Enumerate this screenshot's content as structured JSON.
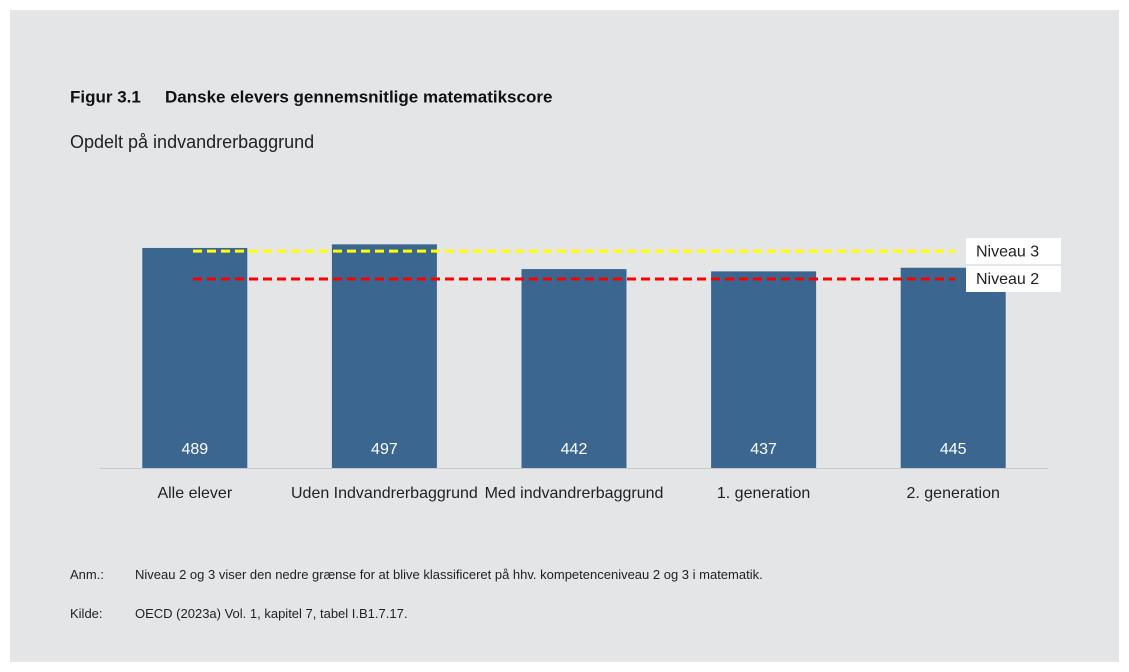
{
  "figure_label": "Figur 3.1",
  "chart_data": {
    "type": "bar",
    "title": "Danske elevers gennemsnitlige matematikscore",
    "subtitle": "Opdelt på indvandrerbaggrund",
    "categories": [
      "Alle elever",
      "Uden Indvandrerbaggrund",
      "Med indvandrerbaggrund",
      "1. generation",
      "2. generation"
    ],
    "values": [
      489,
      497,
      442,
      437,
      445
    ],
    "color": "#3a6690",
    "ylim": [
      0,
      600
    ],
    "reference_lines": [
      {
        "name": "Niveau 3",
        "value": 482,
        "color": "#ffff00"
      },
      {
        "name": "Niveau 2",
        "value": 420,
        "color": "#ff0000"
      }
    ]
  },
  "notes": [
    {
      "label": "Anm.:",
      "text": "Niveau 2 og 3 viser den nedre grænse for at blive klassificeret på hhv. kompetenceniveau 2 og 3 i matematik."
    },
    {
      "label": "Kilde:",
      "text": "OECD (2023a) Vol. 1, kapitel 7, tabel I.B1.7.17."
    }
  ]
}
